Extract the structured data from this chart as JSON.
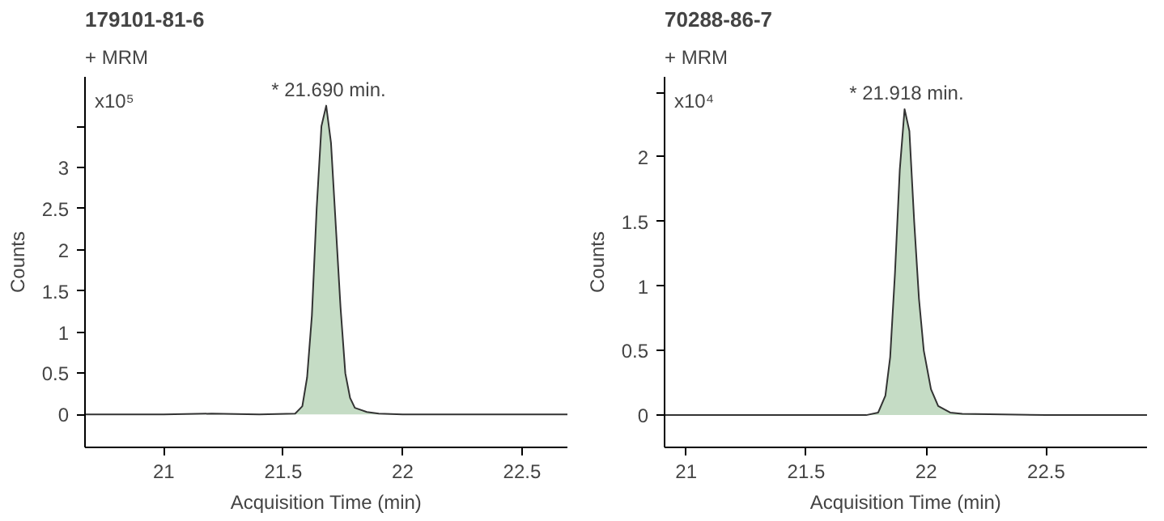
{
  "chart_data": [
    {
      "type": "area",
      "title": "179101-81-6",
      "subtitle": "+ MRM",
      "xlabel": "Acquisition Time (min)",
      "ylabel": "Counts",
      "annotations": [
        "x10⁵",
        {
          "text": "* 21.690 min.",
          "x": 21.69,
          "y": 3.75
        }
      ],
      "xlim": [
        20.67,
        22.69
      ],
      "xticks": [
        21,
        21.5,
        22,
        22.5
      ],
      "ylim": [
        -0.4,
        4.1
      ],
      "yticks": [
        0,
        0.5,
        1,
        1.5,
        2,
        2.5,
        3,
        {
          "value": 3.5,
          "label": null
        }
      ],
      "series": [
        {
          "color": "#c5dcc5",
          "x": [
            20.67,
            21.0,
            21.2,
            21.4,
            21.55,
            21.58,
            21.6,
            21.62,
            21.64,
            21.66,
            21.68,
            21.7,
            21.72,
            21.74,
            21.76,
            21.78,
            21.8,
            21.85,
            21.9,
            22.0,
            22.5,
            22.69
          ],
          "values": [
            0,
            0,
            0.01,
            0,
            0.01,
            0.1,
            0.45,
            1.2,
            2.5,
            3.5,
            3.75,
            3.3,
            2.3,
            1.3,
            0.5,
            0.2,
            0.08,
            0.03,
            0.01,
            0,
            0,
            0
          ]
        }
      ]
    },
    {
      "type": "area",
      "title": "70288-86-7",
      "subtitle": "+ MRM",
      "xlabel": "Acquisition Time (min)",
      "ylabel": "Counts",
      "annotations": [
        "x10⁴",
        {
          "text": "* 21.918 min.",
          "x": 21.918,
          "y": 2.37
        }
      ],
      "xlim": [
        20.91,
        22.92
      ],
      "xticks": [
        21,
        21.5,
        22,
        22.5
      ],
      "ylim": [
        -0.25,
        2.62
      ],
      "yticks": [
        0,
        0.5,
        1,
        1.5,
        2,
        {
          "value": 2.5,
          "label": null
        }
      ],
      "series": [
        {
          "color": "#c5dcc5",
          "x": [
            20.91,
            21.5,
            21.75,
            21.8,
            21.83,
            21.85,
            21.87,
            21.89,
            21.91,
            21.93,
            21.95,
            21.97,
            21.99,
            22.02,
            22.05,
            22.1,
            22.15,
            22.5,
            22.92
          ],
          "values": [
            0,
            0,
            0,
            0.02,
            0.15,
            0.45,
            1.1,
            1.9,
            2.37,
            2.2,
            1.5,
            0.9,
            0.5,
            0.2,
            0.07,
            0.02,
            0.01,
            0,
            0
          ]
        }
      ]
    }
  ]
}
